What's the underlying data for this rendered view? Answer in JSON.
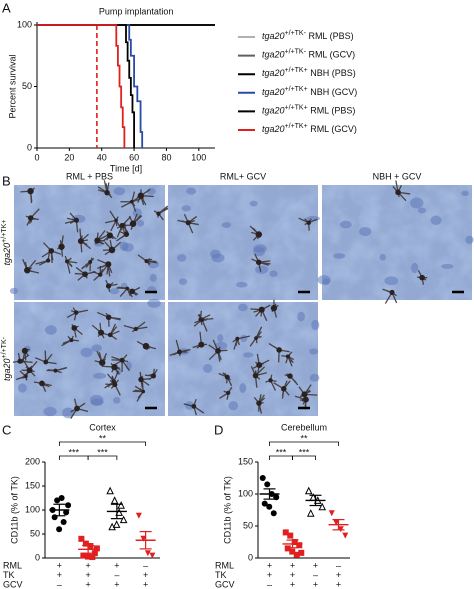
{
  "figure": {
    "panel_labels": [
      "A",
      "B",
      "C",
      "D"
    ],
    "micrographs": {
      "columns": [
        "RML + PBS",
        "RML+ GCV",
        "NBH + GCV"
      ],
      "rows": [
        "tga20+/+TK+",
        "tga20+/+TK-"
      ]
    }
  },
  "chart_data": [
    {
      "type": "line",
      "step": true,
      "annotation": "Pump implantation",
      "annotation_x": 37,
      "annotation_color": "#e02020",
      "xlabel": "Time [d]",
      "ylabel": "Percent survival",
      "xlim": [
        0,
        110
      ],
      "ylim": [
        0,
        100
      ],
      "xticks": [
        0,
        20,
        40,
        60,
        80,
        100
      ],
      "yticks": [
        0,
        50,
        100
      ],
      "series": [
        {
          "name": "tga20+/+TK- RML (PBS)",
          "color": "#b0b0b0",
          "x": [
            0,
            110
          ],
          "values": [
            100,
            100
          ]
        },
        {
          "name": "tga20+/+TK- RML (GCV)",
          "color": "#606060",
          "x": [
            0,
            110
          ],
          "values": [
            100,
            100
          ]
        },
        {
          "name": "tga20+/+TK+ NBH (PBS)",
          "color": "#000000",
          "x": [
            0,
            110
          ],
          "values": [
            100,
            100
          ]
        },
        {
          "name": "tga20+/+TK+ NBH (GCV)",
          "color": "#2a4aa8",
          "x": [
            0,
            56,
            57,
            58,
            60,
            62,
            64,
            65
          ],
          "values": [
            100,
            100,
            88,
            75,
            50,
            38,
            13,
            0
          ]
        },
        {
          "name": "tga20+/+TK+ RML (PBS)",
          "color": "#000000",
          "x": [
            0,
            54,
            55,
            56,
            57,
            58,
            59,
            60
          ],
          "values": [
            100,
            100,
            86,
            71,
            57,
            43,
            29,
            0
          ]
        },
        {
          "name": "tga20+/+TK+ RML (GCV)",
          "color": "#e02020",
          "x": [
            0,
            47,
            49,
            50,
            51,
            52,
            53,
            54
          ],
          "values": [
            100,
            100,
            83,
            67,
            50,
            33,
            17,
            0
          ]
        }
      ]
    },
    {
      "type": "scatter",
      "title": "Cortex",
      "ylabel": "CD11b (% of TK)",
      "ylim": [
        0,
        200
      ],
      "yticks": [
        0,
        50,
        100,
        150,
        200
      ],
      "groups": [
        {
          "color": "#000000",
          "marker": "circle",
          "values": [
            100,
            120,
            125,
            95,
            85,
            60,
            75,
            110
          ],
          "mean": 100,
          "sem": 12
        },
        {
          "color": "#e02020",
          "marker": "square",
          "values": [
            40,
            30,
            25,
            10,
            5,
            3,
            2,
            20
          ],
          "mean": 18,
          "sem": 8
        },
        {
          "color": "#000000",
          "marker": "triangle",
          "values": [
            140,
            120,
            95,
            80,
            65,
            70,
            110
          ],
          "mean": 97,
          "sem": 15
        },
        {
          "color": "#e02020",
          "marker": "triangle-down",
          "values": [
            88,
            40,
            10,
            5
          ],
          "mean": 37,
          "sem": 18
        }
      ],
      "conditions": [
        {
          "label": "RML",
          "values": [
            "+",
            "+",
            "+",
            "–"
          ]
        },
        {
          "label": "TK",
          "values": [
            "+",
            "+",
            "–",
            "+"
          ]
        },
        {
          "label": "GCV",
          "values": [
            "–",
            "+",
            "+",
            "+"
          ]
        }
      ],
      "significance": [
        {
          "from": 0,
          "to": 1,
          "label": "***"
        },
        {
          "from": 1,
          "to": 2,
          "label": "***"
        },
        {
          "from": 0,
          "to": 3,
          "label": "**"
        }
      ]
    },
    {
      "type": "scatter",
      "title": "Cerebellum",
      "ylabel": "CD11b (% of TK)",
      "ylim": [
        0,
        150
      ],
      "yticks": [
        0,
        50,
        100,
        150
      ],
      "groups": [
        {
          "color": "#000000",
          "marker": "circle",
          "values": [
            125,
            115,
            100,
            95,
            85,
            80,
            70
          ],
          "mean": 100,
          "sem": 8
        },
        {
          "color": "#e02020",
          "marker": "square",
          "values": [
            40,
            35,
            25,
            20,
            15,
            10,
            5,
            8
          ],
          "mean": 22,
          "sem": 6
        },
        {
          "color": "#000000",
          "marker": "triangle",
          "values": [
            105,
            95,
            90,
            80,
            70
          ],
          "mean": 90,
          "sem": 8
        },
        {
          "color": "#e02020",
          "marker": "triangle-down",
          "values": [
            70,
            55,
            45,
            35
          ],
          "mean": 52,
          "sem": 8
        }
      ],
      "conditions": [
        {
          "label": "RML",
          "values": [
            "+",
            "+",
            "+",
            "–"
          ]
        },
        {
          "label": "TK",
          "values": [
            "+",
            "+",
            "–",
            "+"
          ]
        },
        {
          "label": "GCV",
          "values": [
            "–",
            "+",
            "+",
            "+"
          ]
        }
      ],
      "significance": [
        {
          "from": 0,
          "to": 1,
          "label": "***"
        },
        {
          "from": 1,
          "to": 2,
          "label": "***"
        },
        {
          "from": 0,
          "to": 3,
          "label": "**"
        }
      ]
    }
  ]
}
